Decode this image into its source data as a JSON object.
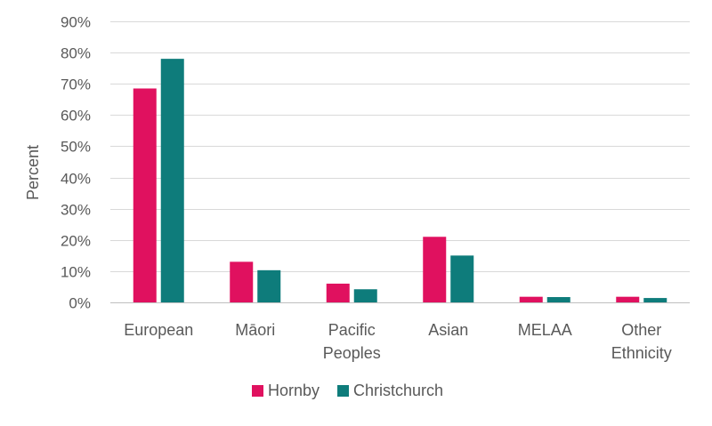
{
  "chart_data": {
    "type": "bar",
    "title": "",
    "xlabel": "",
    "ylabel": "Percent",
    "ylim": [
      0,
      90
    ],
    "ytick_step": 10,
    "ytick_suffix": "%",
    "grid": true,
    "legend_position": "bottom",
    "categories": [
      [
        "European"
      ],
      [
        "Māori"
      ],
      [
        "Pacific",
        "Peoples"
      ],
      [
        "Asian"
      ],
      [
        "MELAA"
      ],
      [
        "Other",
        "Ethnicity"
      ]
    ],
    "series": [
      {
        "name": "Hornby",
        "color": "#E0115F",
        "values": [
          68.5,
          13.0,
          6.0,
          21.0,
          1.8,
          1.8
        ]
      },
      {
        "name": "Christchurch",
        "color": "#0E7C7B",
        "values": [
          78.0,
          10.3,
          4.2,
          15.0,
          1.7,
          1.4
        ]
      }
    ]
  }
}
